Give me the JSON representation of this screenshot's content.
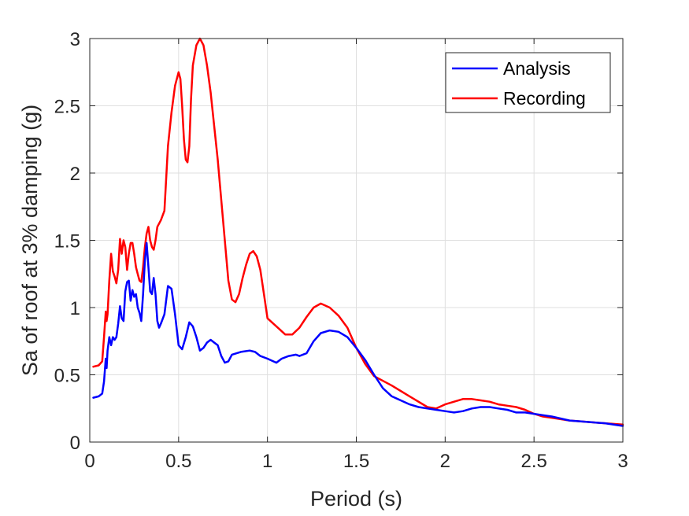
{
  "chart_data": {
    "type": "line",
    "xlabel": "Period (s)",
    "ylabel": "Sa of roof at 3% damping (g)",
    "xlim": [
      0,
      3
    ],
    "ylim": [
      0,
      3
    ],
    "xticks": [
      0,
      0.5,
      1,
      1.5,
      2,
      2.5,
      3
    ],
    "yticks": [
      0,
      0.5,
      1,
      1.5,
      2,
      2.5,
      3
    ],
    "xtick_labels": [
      "0",
      "0.5",
      "1",
      "1.5",
      "2",
      "2.5",
      "3"
    ],
    "ytick_labels": [
      "0",
      "0.5",
      "1",
      "1.5",
      "2",
      "2.5",
      "3"
    ],
    "grid": true,
    "legend_position": "top-right",
    "series": [
      {
        "name": "Analysis",
        "color": "#0000ff",
        "x": [
          0.02,
          0.05,
          0.07,
          0.08,
          0.09,
          0.095,
          0.1,
          0.11,
          0.12,
          0.13,
          0.14,
          0.15,
          0.16,
          0.17,
          0.18,
          0.19,
          0.2,
          0.21,
          0.22,
          0.23,
          0.24,
          0.25,
          0.26,
          0.27,
          0.28,
          0.29,
          0.3,
          0.31,
          0.32,
          0.33,
          0.34,
          0.35,
          0.36,
          0.37,
          0.38,
          0.39,
          0.4,
          0.42,
          0.44,
          0.46,
          0.48,
          0.5,
          0.52,
          0.54,
          0.56,
          0.58,
          0.6,
          0.62,
          0.64,
          0.66,
          0.68,
          0.7,
          0.72,
          0.74,
          0.76,
          0.78,
          0.8,
          0.85,
          0.9,
          0.93,
          0.96,
          1.0,
          1.05,
          1.08,
          1.12,
          1.16,
          1.18,
          1.22,
          1.26,
          1.3,
          1.35,
          1.4,
          1.45,
          1.5,
          1.55,
          1.6,
          1.65,
          1.7,
          1.75,
          1.8,
          1.85,
          1.9,
          1.95,
          2.0,
          2.05,
          2.1,
          2.15,
          2.2,
          2.25,
          2.3,
          2.35,
          2.4,
          2.45,
          2.5,
          2.55,
          2.6,
          2.7,
          2.8,
          2.9,
          3.0
        ],
        "y": [
          0.33,
          0.34,
          0.36,
          0.45,
          0.62,
          0.55,
          0.68,
          0.78,
          0.72,
          0.78,
          0.76,
          0.78,
          0.88,
          1.01,
          0.92,
          0.9,
          1.12,
          1.19,
          1.2,
          1.05,
          1.13,
          1.08,
          1.1,
          1.0,
          0.96,
          0.9,
          1.1,
          1.35,
          1.48,
          1.3,
          1.12,
          1.1,
          1.22,
          1.1,
          0.9,
          0.85,
          0.88,
          0.95,
          1.16,
          1.14,
          0.95,
          0.72,
          0.69,
          0.78,
          0.89,
          0.86,
          0.78,
          0.68,
          0.7,
          0.74,
          0.76,
          0.74,
          0.72,
          0.64,
          0.59,
          0.6,
          0.65,
          0.67,
          0.68,
          0.67,
          0.64,
          0.62,
          0.59,
          0.62,
          0.64,
          0.65,
          0.64,
          0.66,
          0.75,
          0.81,
          0.83,
          0.82,
          0.78,
          0.7,
          0.61,
          0.5,
          0.4,
          0.34,
          0.31,
          0.28,
          0.26,
          0.25,
          0.24,
          0.23,
          0.22,
          0.23,
          0.25,
          0.26,
          0.26,
          0.25,
          0.24,
          0.22,
          0.22,
          0.21,
          0.2,
          0.19,
          0.16,
          0.15,
          0.14,
          0.12
        ]
      },
      {
        "name": "Recording",
        "color": "#ff0000",
        "x": [
          0.02,
          0.05,
          0.07,
          0.08,
          0.09,
          0.095,
          0.1,
          0.11,
          0.12,
          0.13,
          0.14,
          0.15,
          0.16,
          0.17,
          0.18,
          0.19,
          0.2,
          0.21,
          0.22,
          0.23,
          0.24,
          0.25,
          0.26,
          0.27,
          0.28,
          0.29,
          0.3,
          0.31,
          0.32,
          0.33,
          0.34,
          0.35,
          0.36,
          0.37,
          0.38,
          0.4,
          0.42,
          0.44,
          0.46,
          0.48,
          0.5,
          0.51,
          0.52,
          0.53,
          0.54,
          0.55,
          0.56,
          0.57,
          0.58,
          0.6,
          0.62,
          0.64,
          0.66,
          0.68,
          0.7,
          0.72,
          0.74,
          0.76,
          0.78,
          0.8,
          0.82,
          0.84,
          0.86,
          0.88,
          0.9,
          0.92,
          0.94,
          0.96,
          0.98,
          1.0,
          1.05,
          1.1,
          1.14,
          1.18,
          1.22,
          1.26,
          1.3,
          1.35,
          1.4,
          1.45,
          1.5,
          1.55,
          1.6,
          1.7,
          1.8,
          1.9,
          1.95,
          2.0,
          2.05,
          2.1,
          2.15,
          2.2,
          2.25,
          2.3,
          2.35,
          2.4,
          2.45,
          2.5,
          2.55,
          2.6,
          2.7,
          2.8,
          2.9,
          3.0
        ],
        "y": [
          0.56,
          0.57,
          0.6,
          0.78,
          0.97,
          0.9,
          0.95,
          1.2,
          1.4,
          1.27,
          1.23,
          1.18,
          1.28,
          1.51,
          1.4,
          1.5,
          1.45,
          1.28,
          1.4,
          1.48,
          1.48,
          1.4,
          1.3,
          1.25,
          1.2,
          1.19,
          1.3,
          1.45,
          1.55,
          1.6,
          1.5,
          1.45,
          1.43,
          1.5,
          1.6,
          1.65,
          1.72,
          2.2,
          2.45,
          2.65,
          2.75,
          2.7,
          2.5,
          2.25,
          2.1,
          2.08,
          2.2,
          2.55,
          2.8,
          2.95,
          3.0,
          2.95,
          2.8,
          2.6,
          2.35,
          2.1,
          1.8,
          1.5,
          1.2,
          1.06,
          1.04,
          1.1,
          1.22,
          1.32,
          1.4,
          1.42,
          1.38,
          1.28,
          1.1,
          0.92,
          0.86,
          0.8,
          0.8,
          0.85,
          0.93,
          1.0,
          1.03,
          1.0,
          0.94,
          0.85,
          0.7,
          0.58,
          0.49,
          0.42,
          0.34,
          0.26,
          0.25,
          0.28,
          0.3,
          0.32,
          0.32,
          0.31,
          0.3,
          0.28,
          0.27,
          0.26,
          0.24,
          0.21,
          0.19,
          0.18,
          0.16,
          0.15,
          0.14,
          0.13
        ]
      }
    ]
  }
}
